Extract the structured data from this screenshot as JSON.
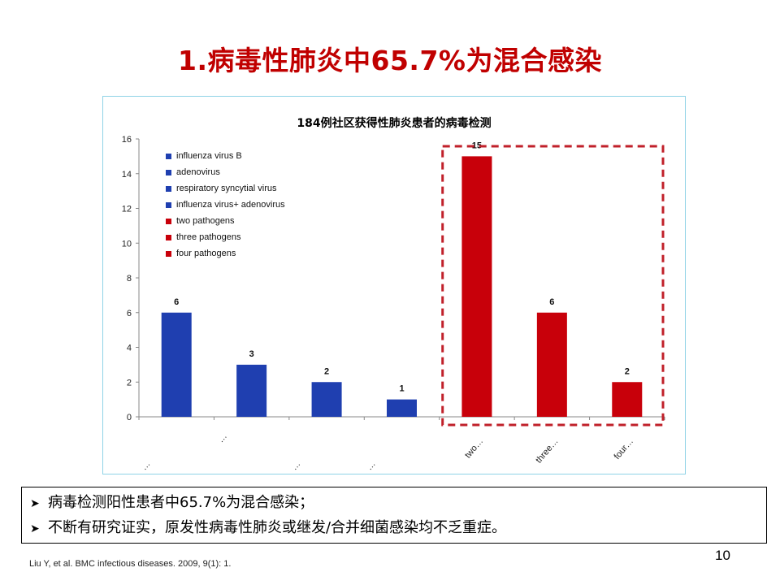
{
  "slide": {
    "title": "1.病毒性肺炎中65.7%为混合感染",
    "page_number": "10",
    "citation": "Liu Y, et al. BMC infectious diseases. 2009, 9(1): 1."
  },
  "bullets": [
    {
      "icon": "arrow-bullet-icon",
      "text": "病毒检测阳性患者中65.7%为混合感染；"
    },
    {
      "icon": "arrow-bullet-icon",
      "text": "不断有研究证实，原发性病毒性肺炎或继发/合并细菌感染均不乏重症。"
    }
  ],
  "chart_data": {
    "type": "bar",
    "title": "184例社区获得性肺炎患者的病毒检测",
    "xlabel": "",
    "ylabel": "",
    "ylim": [
      0,
      16
    ],
    "yticks": [
      0,
      2,
      4,
      6,
      8,
      10,
      12,
      14,
      16
    ],
    "grid": false,
    "legend_position": "top-left",
    "categories": [
      "influenza virus B",
      "adenovirus",
      "respiratory syncytial virus",
      "influenza virus+ adenovirus",
      "two pathogens",
      "three pathogens",
      "four pathogens"
    ],
    "tick_labels": [
      "…",
      "…",
      "…",
      "…",
      "two…",
      "three…",
      "four…"
    ],
    "values": [
      6,
      3,
      2,
      1,
      15,
      6,
      2
    ],
    "data_labels": [
      "6",
      "3",
      "2",
      "1",
      "15",
      "6",
      "2"
    ],
    "colors": [
      "#1f3fb0",
      "#1f3fb0",
      "#1f3fb0",
      "#1f3fb0",
      "#c8000a",
      "#c8000a",
      "#c8000a"
    ],
    "legend": [
      {
        "label": "influenza virus B",
        "color": "#1f3fb0"
      },
      {
        "label": "adenovirus",
        "color": "#1f3fb0"
      },
      {
        "label": "respiratory syncytial virus",
        "color": "#1f3fb0"
      },
      {
        "label": "influenza virus+ adenovirus",
        "color": "#1f3fb0"
      },
      {
        "label": "two pathogens",
        "color": "#c8000a"
      },
      {
        "label": "three pathogens",
        "color": "#c8000a"
      },
      {
        "label": "four pathogens",
        "color": "#c8000a"
      }
    ],
    "highlight_box_color": "#c0202a"
  }
}
